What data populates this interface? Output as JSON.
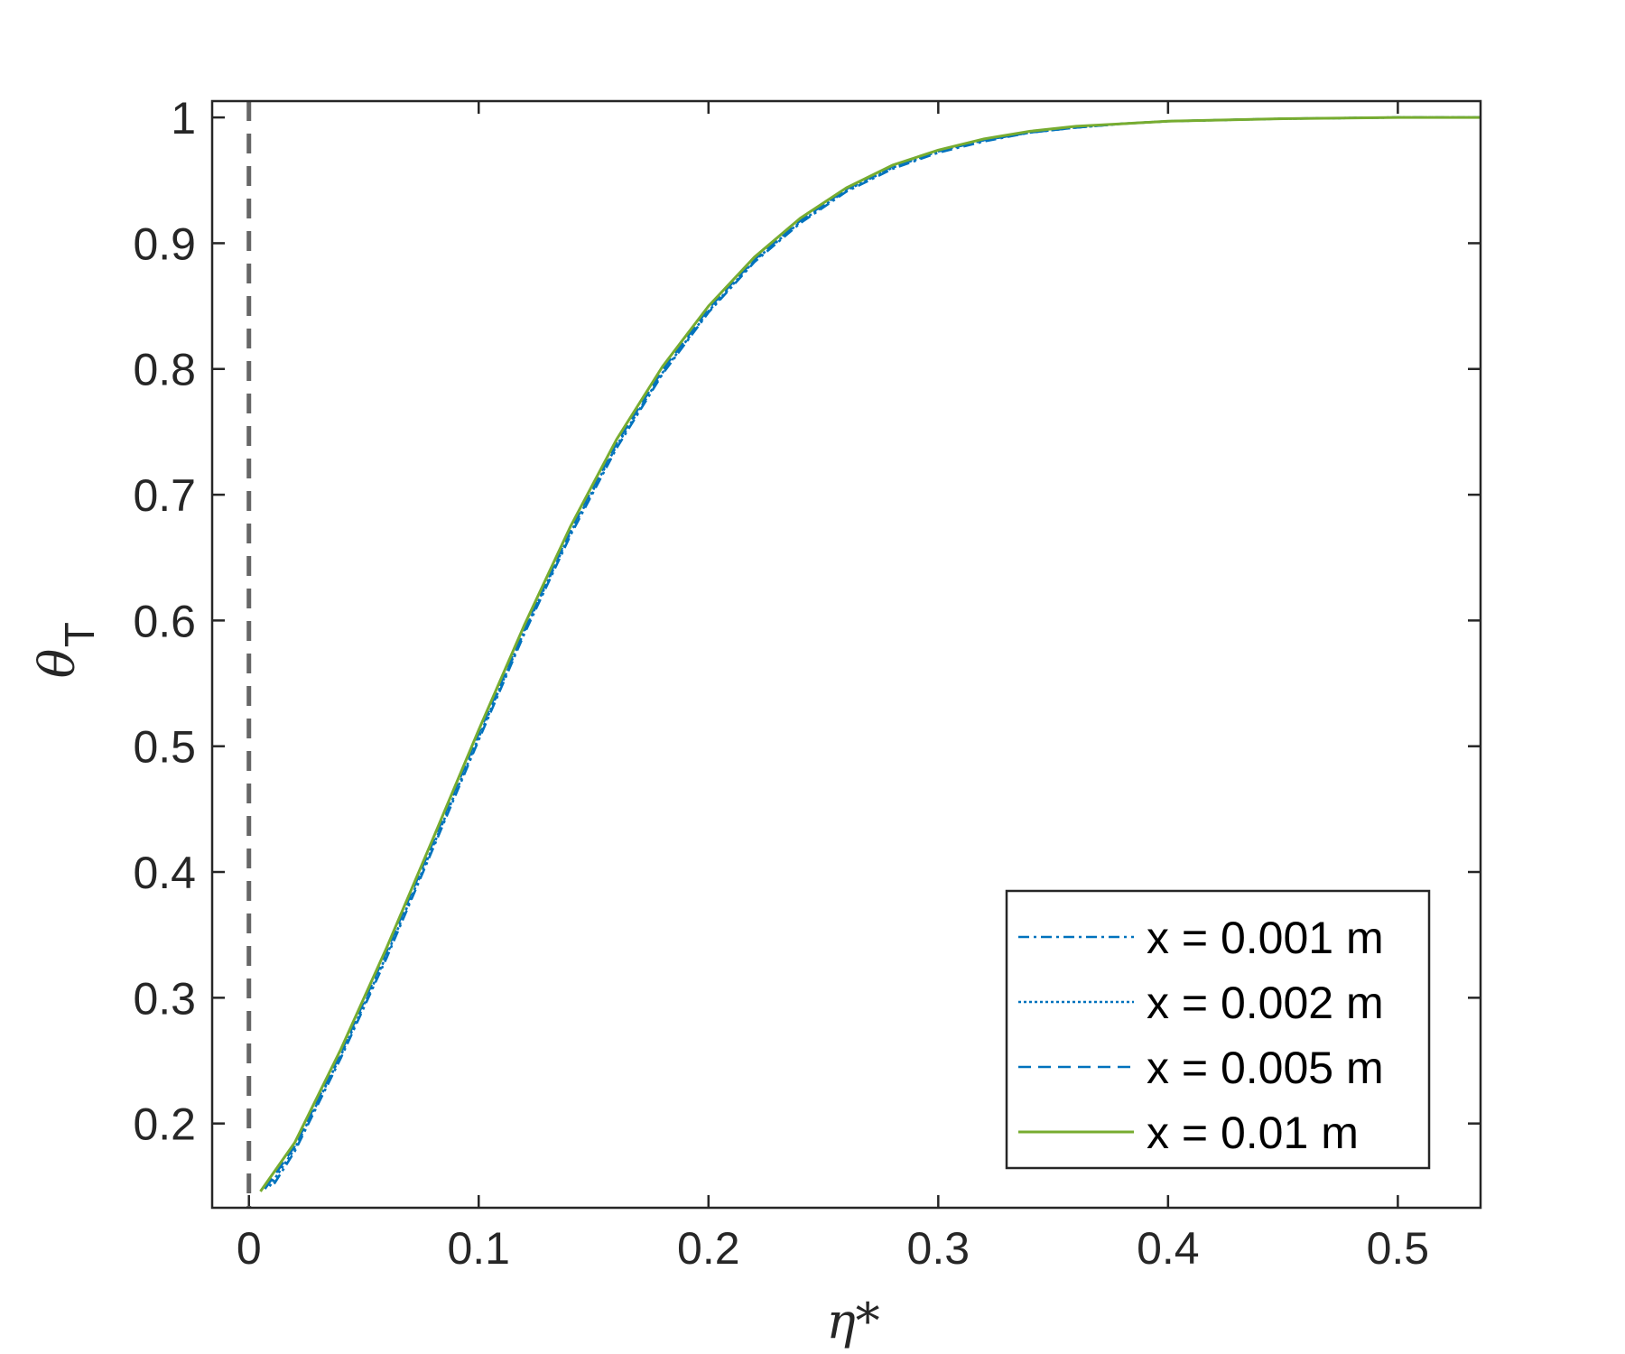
{
  "chart_data": {
    "type": "line",
    "xlabel": "η*",
    "ylabel": "θ",
    "ylabel_subscript": "T",
    "xlim": [
      -0.016,
      0.536
    ],
    "ylim": [
      0.133,
      1.013
    ],
    "xticks": [
      0,
      0.1,
      0.2,
      0.3,
      0.4,
      0.5
    ],
    "xtick_labels": [
      "0",
      "0.1",
      "0.2",
      "0.3",
      "0.4",
      "0.5"
    ],
    "yticks": [
      0.2,
      0.3,
      0.4,
      0.5,
      0.6,
      0.7,
      0.8,
      0.9,
      1
    ],
    "ytick_labels": [
      "0.2",
      "0.3",
      "0.4",
      "0.5",
      "0.6",
      "0.7",
      "0.8",
      "0.9",
      "1"
    ],
    "grid": false,
    "legend_position": "bottom-right",
    "reference_line": {
      "x": 0,
      "style": "dashed",
      "color": "#666666"
    },
    "series": [
      {
        "name": "x = 0.001 m",
        "style": "dashdot",
        "color": "#0072BD",
        "x": [
          0.011,
          0.02,
          0.04,
          0.06,
          0.08,
          0.1,
          0.12,
          0.14,
          0.16,
          0.18,
          0.2,
          0.22,
          0.24,
          0.26,
          0.28,
          0.3,
          0.32,
          0.34,
          0.36,
          0.38,
          0.4,
          0.45,
          0.5,
          0.536
        ],
        "y": [
          0.152,
          0.178,
          0.252,
          0.332,
          0.418,
          0.505,
          0.59,
          0.668,
          0.737,
          0.796,
          0.845,
          0.885,
          0.916,
          0.941,
          0.959,
          0.972,
          0.981,
          0.988,
          0.992,
          0.995,
          0.997,
          0.999,
          1.0,
          1.0
        ]
      },
      {
        "name": "x = 0.002 m",
        "style": "dotted",
        "color": "#0072BD",
        "x": [
          0.009,
          0.02,
          0.04,
          0.06,
          0.08,
          0.1,
          0.12,
          0.14,
          0.16,
          0.18,
          0.2,
          0.22,
          0.24,
          0.26,
          0.28,
          0.3,
          0.32,
          0.34,
          0.36,
          0.38,
          0.4,
          0.45,
          0.5,
          0.536
        ],
        "y": [
          0.15,
          0.18,
          0.254,
          0.334,
          0.42,
          0.507,
          0.592,
          0.67,
          0.739,
          0.797,
          0.846,
          0.886,
          0.917,
          0.942,
          0.96,
          0.973,
          0.982,
          0.988,
          0.992,
          0.995,
          0.997,
          0.999,
          1.0,
          1.0
        ]
      },
      {
        "name": "x = 0.005 m",
        "style": "dashed",
        "color": "#0072BD",
        "x": [
          0.007,
          0.02,
          0.04,
          0.06,
          0.08,
          0.1,
          0.12,
          0.14,
          0.16,
          0.18,
          0.2,
          0.22,
          0.24,
          0.26,
          0.28,
          0.3,
          0.32,
          0.34,
          0.36,
          0.38,
          0.4,
          0.45,
          0.5,
          0.536
        ],
        "y": [
          0.148,
          0.182,
          0.256,
          0.337,
          0.423,
          0.51,
          0.594,
          0.672,
          0.741,
          0.799,
          0.848,
          0.887,
          0.918,
          0.943,
          0.961,
          0.973,
          0.982,
          0.988,
          0.992,
          0.995,
          0.997,
          0.999,
          1.0,
          1.0
        ]
      },
      {
        "name": "x = 0.01 m",
        "style": "solid",
        "color": "#77AC30",
        "x": [
          0.005,
          0.02,
          0.04,
          0.06,
          0.08,
          0.1,
          0.12,
          0.14,
          0.16,
          0.18,
          0.2,
          0.22,
          0.24,
          0.26,
          0.28,
          0.3,
          0.32,
          0.34,
          0.36,
          0.38,
          0.4,
          0.45,
          0.5,
          0.536
        ],
        "y": [
          0.146,
          0.185,
          0.259,
          0.34,
          0.426,
          0.513,
          0.597,
          0.675,
          0.744,
          0.802,
          0.85,
          0.889,
          0.92,
          0.944,
          0.962,
          0.974,
          0.983,
          0.989,
          0.993,
          0.995,
          0.997,
          0.999,
          1.0,
          1.0
        ]
      }
    ]
  }
}
